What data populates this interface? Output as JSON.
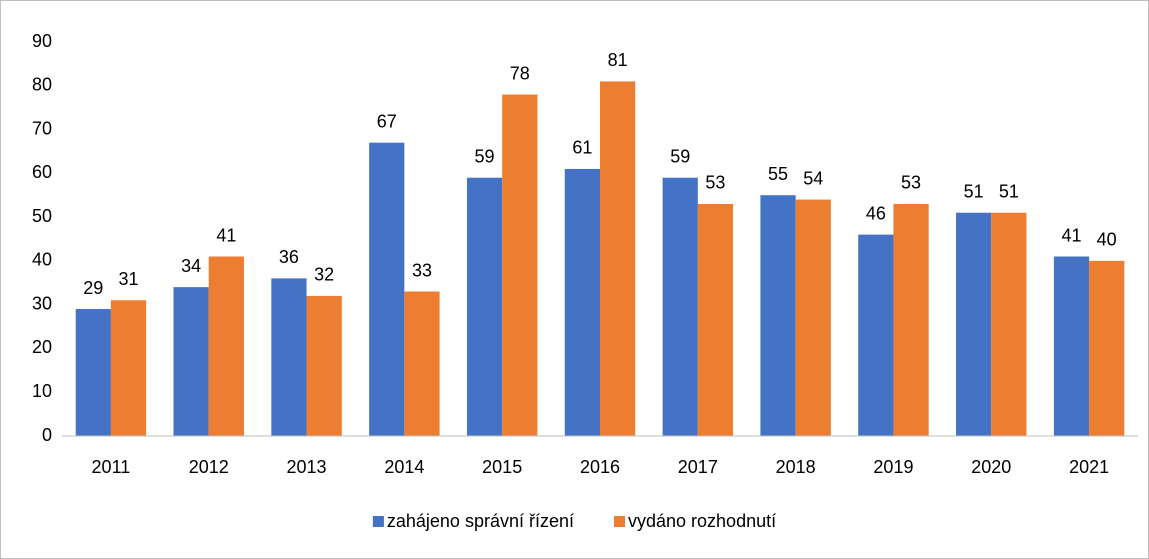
{
  "chart_data": {
    "type": "bar",
    "categories": [
      "2011",
      "2012",
      "2013",
      "2014",
      "2015",
      "2016",
      "2017",
      "2018",
      "2019",
      "2020",
      "2021"
    ],
    "series": [
      {
        "name": "zahájeno správní řízení",
        "color": "#4472c4",
        "values": [
          29,
          34,
          36,
          67,
          59,
          61,
          59,
          55,
          46,
          51,
          41
        ]
      },
      {
        "name": "vydáno rozhodnutí",
        "color": "#ed7d31",
        "values": [
          31,
          41,
          32,
          33,
          78,
          81,
          53,
          54,
          53,
          51,
          40
        ]
      }
    ],
    "ylim": [
      0,
      90
    ],
    "yticks": [
      0,
      10,
      20,
      30,
      40,
      50,
      60,
      70,
      80,
      90
    ],
    "grid": false,
    "legend": "bottom"
  }
}
